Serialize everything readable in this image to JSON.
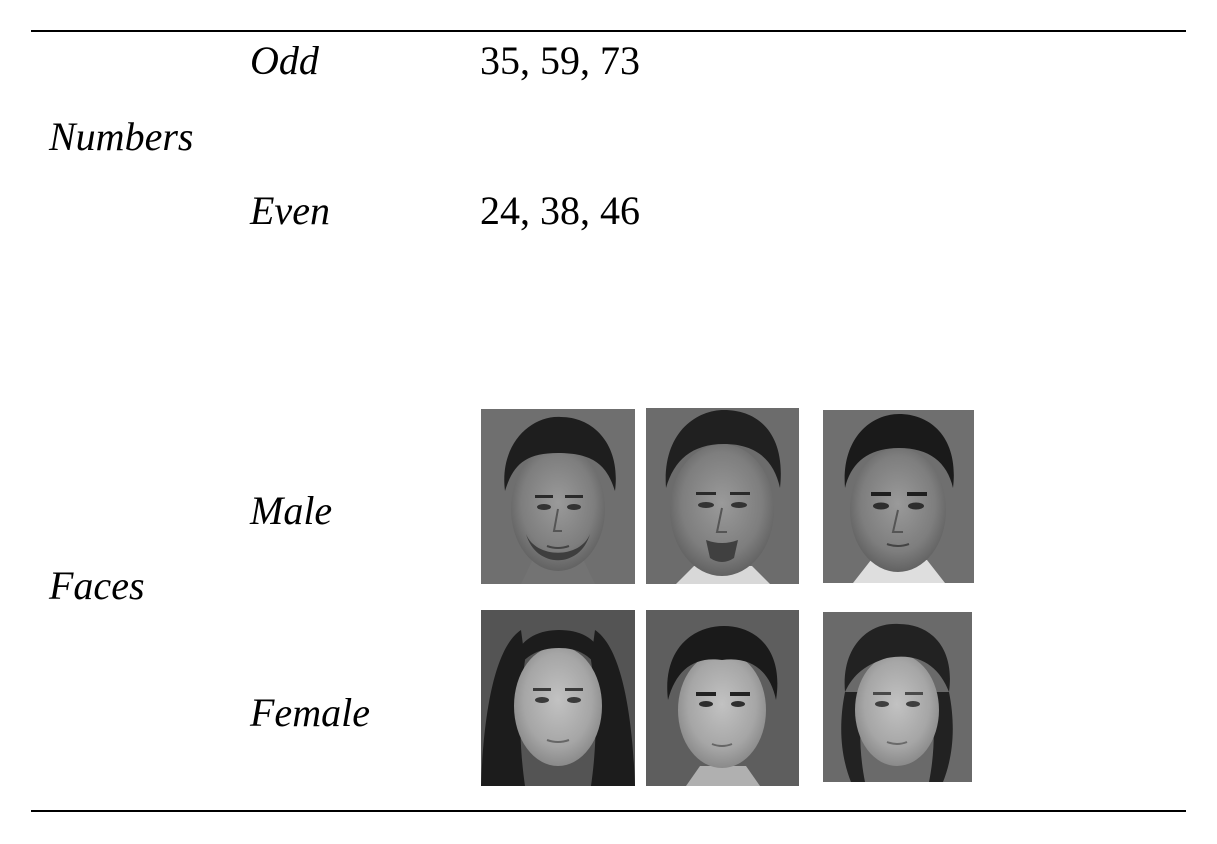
{
  "table": {
    "numbers": {
      "category": "Numbers",
      "rows": [
        {
          "label": "Odd",
          "values": "35, 59, 73"
        },
        {
          "label": "Even",
          "values": "24, 38, 46"
        }
      ]
    },
    "faces": {
      "category": "Faces",
      "rows": [
        {
          "label": "Male"
        },
        {
          "label": "Female"
        }
      ]
    }
  }
}
